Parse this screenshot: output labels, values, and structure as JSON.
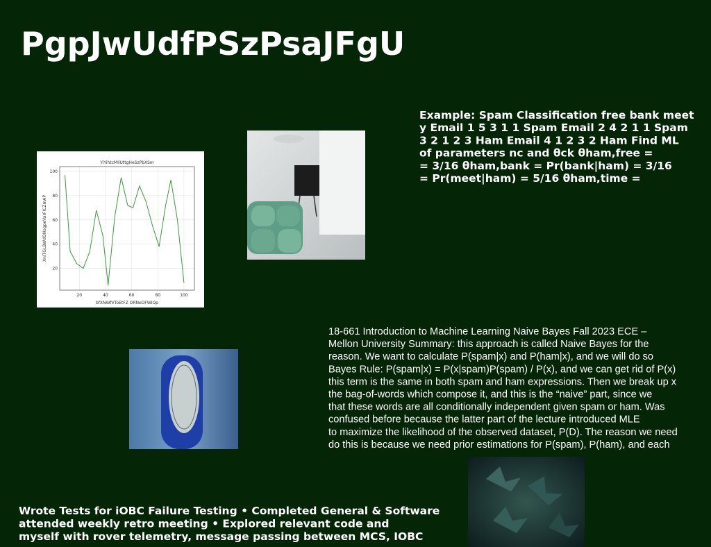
{
  "header": {
    "title": "PgpJwUdfPSzPsaJFgU"
  },
  "example_block": {
    "lines": [
      "Example: Spam Classification free bank meet",
      "y Email 1 5 3 1 1 Spam Email 2 4 2 1 1 Spam",
      "3 2 1 2 3 Ham Email 4 1 2 3 2 Ham Find ML",
      "of parameters nc and θck θham,free =",
      "= 3/16 θham,bank = Pr(bank|ham) = 3/16",
      "= Pr(meet|ham) = 5/16 θham,time ="
    ]
  },
  "notes_block": {
    "lines": [
      "18-661 Introduction to Machine Learning Naive Bayes Fall 2023 ECE –",
      "Mellon University Summary: this approach is called Naive Bayes for the",
      "reason. We want to calculate P(spam|x) and P(ham|x), and we will do so",
      "Bayes Rule: P(spam|x) = P(x|spam)P(spam) / P(x), and we can get rid of P(x)",
      "this term is the same in both spam and ham expressions. Then we break up x",
      "the bag-of-words which compose it, and this is the “naive” part, since we",
      "that these words are all conditionally independent given spam or ham. Was",
      "confused before because the latter part of the lecture introduced MLE",
      "to maximize the likelihood of the observed dataset, P(D). The reason we need",
      "do this is because we need prior estimations for P(spam), P(ham), and each"
    ]
  },
  "footer_block": {
    "lines": [
      "Wrote Tests for iOBC Failure Testing • Completed General & Software",
      "attended weekly retro meeting • Explored relevant code and",
      "myself with rover telemetry, message passing between MCS, IOBC"
    ]
  },
  "chart_data": {
    "type": "line",
    "title": "YiYihtcMIlUttgHeSzPbXSm",
    "x_label": "bfXNWfVToEtFZ ORNeDFWIOp",
    "y_label": "XnITGLBWdONogpeVarFICZmAP",
    "x": [
      9,
      13,
      18,
      23,
      28,
      33,
      38,
      42,
      47,
      52,
      57,
      61,
      66,
      71,
      76,
      81,
      86,
      90,
      95,
      100
    ],
    "values": [
      97,
      34,
      24,
      20,
      34,
      68,
      47,
      6,
      62,
      95,
      72,
      70,
      88,
      75,
      55,
      38,
      72,
      93,
      60,
      8
    ],
    "color": "#3a9a3a",
    "xlim": [
      5,
      108
    ],
    "ylim": [
      2,
      104
    ],
    "xticks": [
      20,
      40,
      60,
      80,
      100
    ],
    "yticks": [
      20,
      40,
      60,
      80,
      100
    ],
    "grid": true
  }
}
